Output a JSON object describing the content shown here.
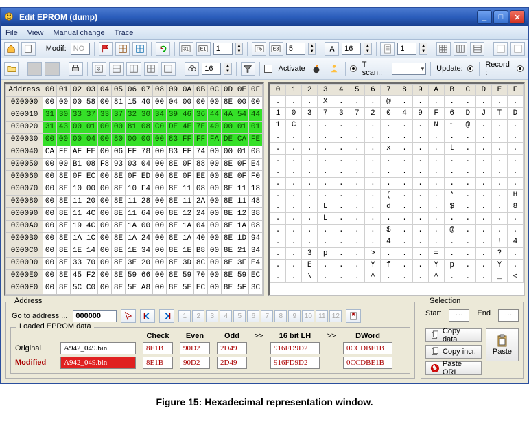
{
  "window": {
    "title": "Edit EPROM (dump)"
  },
  "menu": {
    "items": [
      "File",
      "View",
      "Manual change",
      "Trace"
    ]
  },
  "toolbar1": {
    "modif_label": "Modif:",
    "modif_value": "NO",
    "spin1": "1",
    "spin2": "5",
    "spin3": "16",
    "spin4": "1"
  },
  "toolbar2": {
    "find_value": "16",
    "activate_label": "Activate",
    "tscan_label": "T scan.:",
    "tscan_value": "",
    "update_label": "Update:",
    "record_label": "Record :"
  },
  "hex": {
    "address_hdr": "Address",
    "col_hdrs": [
      "00",
      "01",
      "02",
      "03",
      "04",
      "05",
      "06",
      "07",
      "08",
      "09",
      "0A",
      "0B",
      "0C",
      "0D",
      "0E",
      "0F"
    ],
    "rows": [
      {
        "addr": "000000",
        "hl": false,
        "cells": [
          "00",
          "00",
          "00",
          "58",
          "00",
          "81",
          "15",
          "40",
          "00",
          "04",
          "00",
          "00",
          "00",
          "8E",
          "00",
          "00"
        ]
      },
      {
        "addr": "000010",
        "hl": true,
        "cells": [
          "31",
          "30",
          "33",
          "37",
          "33",
          "37",
          "32",
          "30",
          "34",
          "39",
          "46",
          "36",
          "44",
          "4A",
          "54",
          "44"
        ]
      },
      {
        "addr": "000020",
        "hl": true,
        "cells": [
          "31",
          "43",
          "00",
          "01",
          "00",
          "00",
          "81",
          "08",
          "C0",
          "DE",
          "4E",
          "7E",
          "40",
          "00",
          "01",
          "01"
        ]
      },
      {
        "addr": "000030",
        "hl": true,
        "cells": [
          "00",
          "00",
          "00",
          "04",
          "00",
          "80",
          "00",
          "00",
          "00",
          "83",
          "FF",
          "FF",
          "FA",
          "DE",
          "CA",
          "FE"
        ]
      },
      {
        "addr": "000040",
        "hl": false,
        "cells": [
          "CA",
          "FE",
          "AF",
          "FE",
          "00",
          "06",
          "FF",
          "78",
          "00",
          "83",
          "FF",
          "74",
          "00",
          "00",
          "01",
          "08"
        ]
      },
      {
        "addr": "000050",
        "hl": false,
        "cells": [
          "00",
          "00",
          "B1",
          "08",
          "F8",
          "93",
          "03",
          "04",
          "00",
          "8E",
          "0F",
          "88",
          "00",
          "8E",
          "0F",
          "E4"
        ]
      },
      {
        "addr": "000060",
        "hl": false,
        "cells": [
          "00",
          "8E",
          "0F",
          "EC",
          "00",
          "8E",
          "0F",
          "ED",
          "00",
          "8E",
          "0F",
          "EE",
          "00",
          "8E",
          "0F",
          "F0"
        ]
      },
      {
        "addr": "000070",
        "hl": false,
        "cells": [
          "00",
          "8E",
          "10",
          "00",
          "00",
          "8E",
          "10",
          "F4",
          "00",
          "8E",
          "11",
          "08",
          "00",
          "8E",
          "11",
          "18"
        ]
      },
      {
        "addr": "000080",
        "hl": false,
        "cells": [
          "00",
          "8E",
          "11",
          "20",
          "00",
          "8E",
          "11",
          "28",
          "00",
          "8E",
          "11",
          "2A",
          "00",
          "8E",
          "11",
          "48"
        ]
      },
      {
        "addr": "000090",
        "hl": false,
        "cells": [
          "00",
          "8E",
          "11",
          "4C",
          "00",
          "8E",
          "11",
          "64",
          "00",
          "8E",
          "12",
          "24",
          "00",
          "8E",
          "12",
          "38"
        ]
      },
      {
        "addr": "0000A0",
        "hl": false,
        "cells": [
          "00",
          "8E",
          "19",
          "4C",
          "00",
          "8E",
          "1A",
          "00",
          "00",
          "8E",
          "1A",
          "04",
          "00",
          "8E",
          "1A",
          "08"
        ]
      },
      {
        "addr": "0000B0",
        "hl": false,
        "cells": [
          "00",
          "8E",
          "1A",
          "1C",
          "00",
          "8E",
          "1A",
          "24",
          "00",
          "8E",
          "1A",
          "40",
          "00",
          "8E",
          "1D",
          "94"
        ]
      },
      {
        "addr": "0000C0",
        "hl": false,
        "cells": [
          "00",
          "8E",
          "1E",
          "14",
          "00",
          "8E",
          "1E",
          "34",
          "00",
          "8E",
          "1E",
          "B8",
          "00",
          "8E",
          "21",
          "34"
        ]
      },
      {
        "addr": "0000D0",
        "hl": false,
        "cells": [
          "00",
          "8E",
          "33",
          "70",
          "00",
          "8E",
          "3E",
          "20",
          "00",
          "8E",
          "3D",
          "8C",
          "00",
          "8E",
          "3F",
          "E4"
        ]
      },
      {
        "addr": "0000E0",
        "hl": false,
        "cells": [
          "00",
          "8E",
          "45",
          "F2",
          "00",
          "8E",
          "59",
          "66",
          "00",
          "8E",
          "59",
          "70",
          "00",
          "8E",
          "59",
          "EC"
        ]
      },
      {
        "addr": "0000F0",
        "hl": false,
        "cells": [
          "00",
          "8E",
          "5C",
          "C0",
          "00",
          "8E",
          "5E",
          "A8",
          "00",
          "8E",
          "5E",
          "EC",
          "00",
          "8E",
          "5F",
          "3C"
        ]
      }
    ]
  },
  "ascii": {
    "col_hdrs": [
      "0",
      "1",
      "2",
      "3",
      "4",
      "5",
      "6",
      "7",
      "8",
      "9",
      "A",
      "B",
      "C",
      "D",
      "E",
      "F"
    ],
    "rows": [
      [
        ".",
        ".",
        ".",
        "X",
        ".",
        ".",
        ".",
        "@",
        ".",
        ".",
        ".",
        ".",
        ".",
        ".",
        ".",
        "."
      ],
      [
        "1",
        "0",
        "3",
        "7",
        "3",
        "7",
        "2",
        "0",
        "4",
        "9",
        "F",
        "6",
        "D",
        "J",
        "T",
        "D"
      ],
      [
        "1",
        "C",
        ".",
        ".",
        ".",
        ".",
        ".",
        ".",
        ".",
        ".",
        "N",
        "~",
        "@",
        ".",
        ".",
        "."
      ],
      [
        ".",
        ".",
        ".",
        ".",
        ".",
        ".",
        ".",
        ".",
        ".",
        ".",
        ".",
        ".",
        ".",
        ".",
        ".",
        "."
      ],
      [
        ".",
        ".",
        ".",
        ".",
        ".",
        ".",
        ".",
        "x",
        ".",
        ".",
        ".",
        "t",
        ".",
        ".",
        ".",
        "."
      ],
      [
        ".",
        ".",
        ".",
        ".",
        ".",
        ".",
        ".",
        ".",
        ".",
        ".",
        ".",
        ".",
        ".",
        ".",
        ".",
        "."
      ],
      [
        ".",
        ".",
        ".",
        ".",
        ".",
        ".",
        ".",
        ".",
        ".",
        ".",
        ".",
        ".",
        ".",
        ".",
        ".",
        "."
      ],
      [
        ".",
        ".",
        ".",
        ".",
        ".",
        ".",
        ".",
        ".",
        ".",
        ".",
        ".",
        ".",
        ".",
        ".",
        ".",
        "."
      ],
      [
        ".",
        ".",
        ".",
        ".",
        ".",
        ".",
        ".",
        "(",
        ".",
        ".",
        ".",
        "*",
        ".",
        ".",
        ".",
        "H"
      ],
      [
        ".",
        ".",
        ".",
        "L",
        ".",
        ".",
        ".",
        "d",
        ".",
        ".",
        ".",
        "$",
        ".",
        ".",
        ".",
        "8"
      ],
      [
        ".",
        ".",
        ".",
        "L",
        ".",
        ".",
        ".",
        ".",
        ".",
        ".",
        ".",
        ".",
        ".",
        ".",
        ".",
        "."
      ],
      [
        ".",
        ".",
        ".",
        ".",
        ".",
        ".",
        ".",
        "$",
        ".",
        ".",
        ".",
        "@",
        ".",
        ".",
        ".",
        "."
      ],
      [
        ".",
        ".",
        ".",
        ".",
        ".",
        ".",
        ".",
        "4",
        ".",
        ".",
        ".",
        ".",
        ".",
        ".",
        "!",
        "4"
      ],
      [
        ".",
        ".",
        "3",
        "p",
        ".",
        ".",
        ">",
        ".",
        ".",
        ".",
        "=",
        ".",
        ".",
        ".",
        "?",
        "."
      ],
      [
        ".",
        ".",
        "E",
        ".",
        ".",
        ".",
        "Y",
        "f",
        ".",
        ".",
        "Y",
        "p",
        ".",
        ".",
        "Y",
        "."
      ],
      [
        ".",
        ".",
        "\\",
        ".",
        ".",
        ".",
        "^",
        ".",
        ".",
        ".",
        "^",
        ".",
        ".",
        ".",
        "_",
        "<"
      ]
    ]
  },
  "address_panel": {
    "legend": "Address",
    "goto_label": "Go to address ...",
    "goto_value": "000000",
    "numbers": [
      "1",
      "2",
      "3",
      "4",
      "5",
      "6",
      "7",
      "8",
      "9",
      "10",
      "11",
      "12"
    ]
  },
  "loaded_panel": {
    "legend": "Loaded EPROM data",
    "check_hdr": "Check",
    "even_hdr": "Even",
    "odd_hdr": "Odd",
    "lh16_hdr": "16 bit LH",
    "dword_hdr": "DWord",
    "arrow": ">>",
    "original_label": "Original",
    "modified_label": "Modified",
    "original_file": "A942_049.bin",
    "modified_file": "A942_049.bin",
    "orig": {
      "check": "8E1B",
      "even": "90D2",
      "odd": "2D49",
      "lh16": "916FD9D2",
      "dword": "0CCDBE1B"
    },
    "mod": {
      "check": "8E1B",
      "even": "90D2",
      "odd": "2D49",
      "lh16": "916FD9D2",
      "dword": "0CCDBE1B"
    }
  },
  "selection_panel": {
    "legend": "Selection",
    "start_label": "Start",
    "start_value": "···",
    "end_label": "End",
    "end_value": "···",
    "copy_data": "Copy data",
    "copy_incr": "Copy incr.",
    "paste_ori": "Paste ORI",
    "paste": "Paste"
  },
  "caption": "Figure 15: Hexadecimal representation window.",
  "colors": {
    "highlight_bg": "#35e028",
    "titlebar_top": "#4a7ad0",
    "titlebar_bottom": "#183f8f",
    "error_bg": "#e02020"
  }
}
